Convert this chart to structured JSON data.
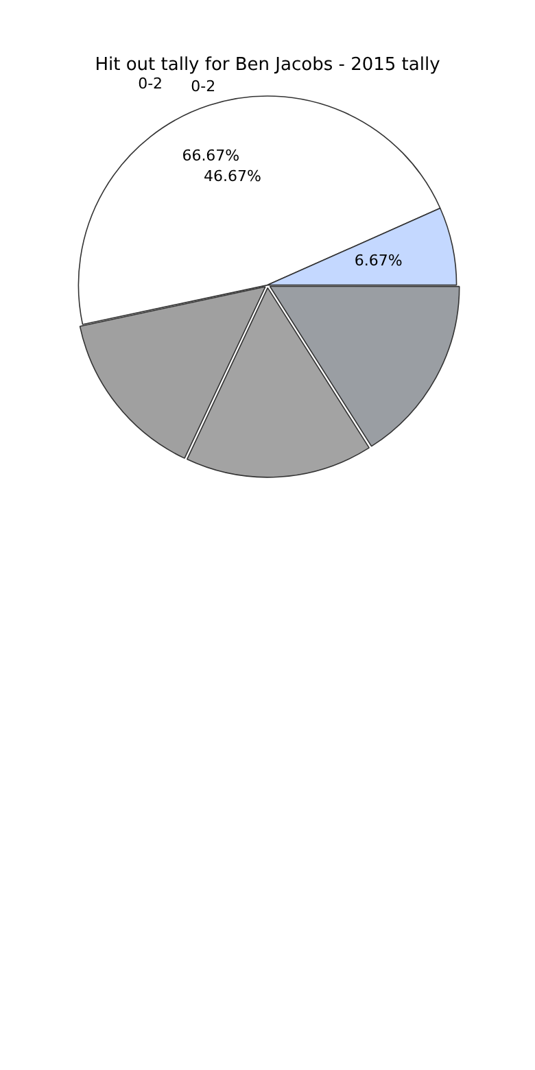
{
  "chart_data": {
    "type": "pie",
    "title": "Hit out tally for Ben Jacobs - 2015 tally",
    "categories": [
      null,
      null,
      null,
      "0-2",
      null
    ],
    "values": [
      16,
      16,
      14.66,
      46.67,
      6.67
    ],
    "colors": [
      "#9a9ea3",
      "#a3a3a3",
      "#a0a0a0",
      "#ffffff",
      "#c4d8ff"
    ],
    "value_labels": [
      null,
      null,
      null,
      "46.67%",
      "6.67%"
    ],
    "annotations": [
      "0-2",
      "66.67%"
    ],
    "legend": false
  }
}
